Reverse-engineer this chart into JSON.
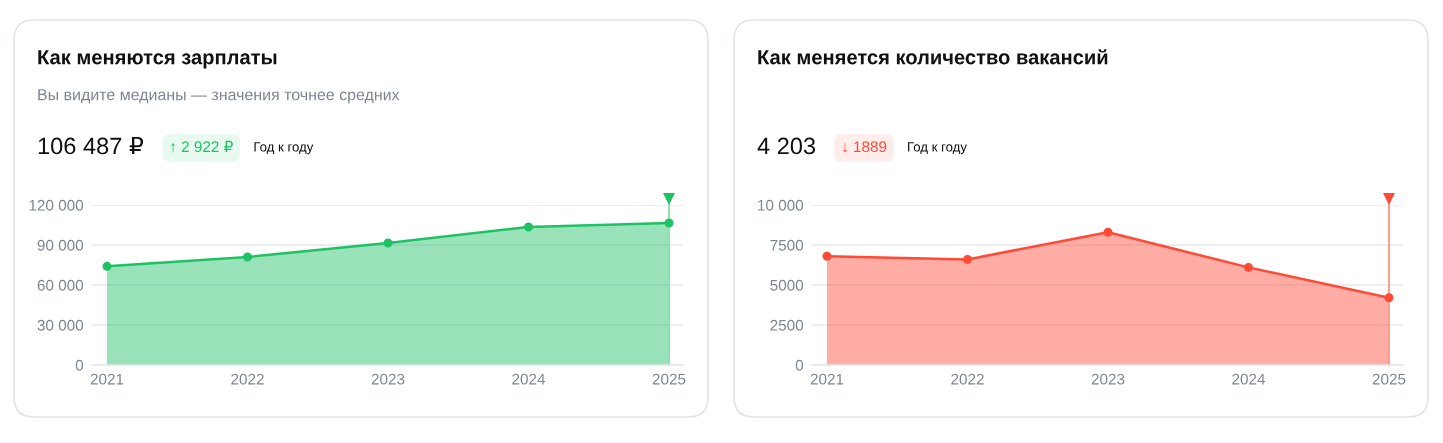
{
  "chart_data": [
    {
      "type": "area",
      "title": "Как меняются зарплаты",
      "subtitle": "Вы видите медианы — значения точнее средних",
      "annotations": [
        "106 487 ₽",
        "↑ 2 922 ₽",
        "Год к году"
      ],
      "categories": [
        "2021",
        "2022",
        "2023",
        "2024",
        "2025"
      ],
      "series": [
        {
          "color": "#1ec265",
          "values": [
            74000,
            81000,
            91500,
            103500,
            106500
          ]
        }
      ],
      "ylim": [
        0,
        120000
      ],
      "yticks": [
        0,
        {
          "value": 30000,
          "label": "30 000"
        },
        {
          "value": 60000,
          "label": "60 000"
        },
        {
          "value": 90000,
          "label": "90 000"
        },
        {
          "value": 120000,
          "label": "120 000"
        }
      ],
      "grid": "y",
      "marker": "circle",
      "ref_lines": [
        {
          "axis": "x",
          "value": "2025",
          "color": "#8fe0b0"
        }
      ]
    },
    {
      "type": "area",
      "title": "Как меняется количество вакансий",
      "annotations": [
        "4 203",
        "↓ 1889",
        "Год к году"
      ],
      "categories": [
        "2021",
        "2022",
        "2023",
        "2024",
        "2025"
      ],
      "series": [
        {
          "color": "#ff4a36",
          "values": [
            6800,
            6600,
            8300,
            6100,
            4200
          ]
        }
      ],
      "ylim": [
        0,
        10000
      ],
      "yticks": [
        0,
        2500,
        5000,
        7500,
        {
          "value": 10000,
          "label": "10 000"
        }
      ],
      "grid": "y",
      "marker": "circle",
      "ref_lines": [
        {
          "axis": "x",
          "value": "2025",
          "color": "#ff9a8c"
        }
      ]
    }
  ]
}
